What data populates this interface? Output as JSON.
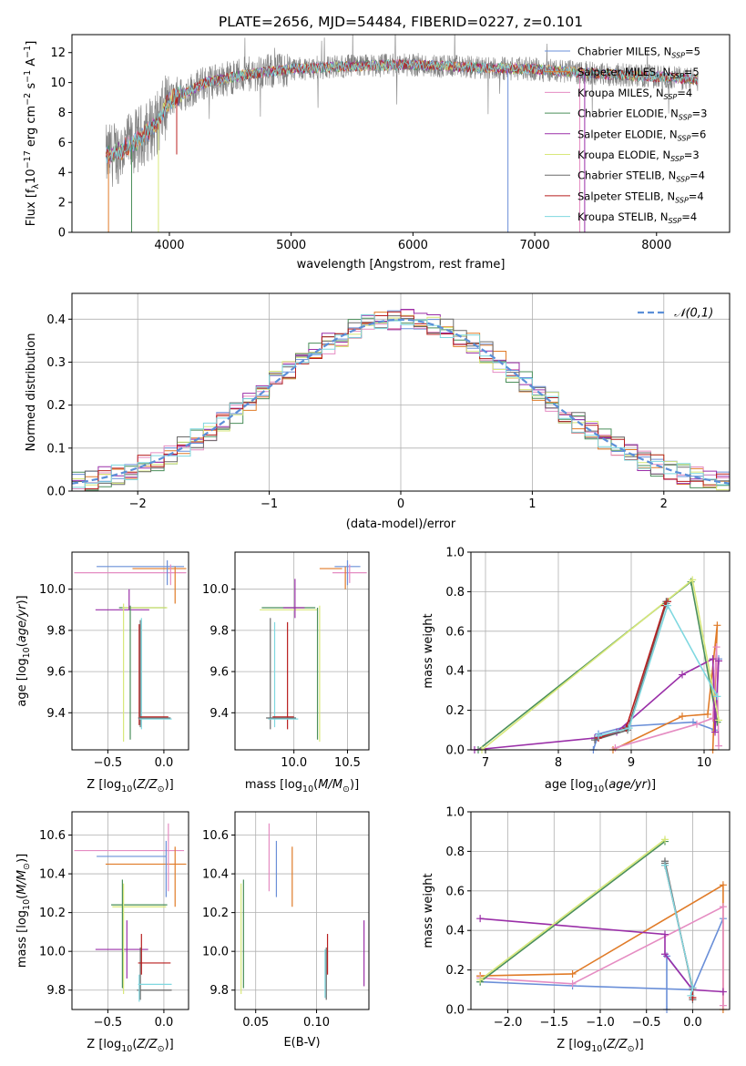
{
  "figure": {
    "title": "PLATE=2656, MJD=54484, FIBERID=0227, z=0.101"
  },
  "series_names": [
    "Chabrier MILES, N_SSP=5",
    "Salpeter MILES, N_SSP=5",
    "Kroupa MILES, N_SSP=4",
    "Chabrier ELODIE, N_SSP=3",
    "Salpeter ELODIE, N_SSP=6",
    "Kroupa ELODIE, N_SSP=3",
    "Chabrier STELIB, N_SSP=4",
    "Salpeter STELIB, N_SSP=4",
    "Kroupa STELIB, N_SSP=4"
  ],
  "legend_labels": [
    {
      "pre": "Chabrier MILES, N",
      "sub": "SSP",
      "post": "=5"
    },
    {
      "pre": "Salpeter MILES, N",
      "sub": "SSP",
      "post": "=5"
    },
    {
      "pre": "Kroupa MILES, N",
      "sub": "SSP",
      "post": "=4"
    },
    {
      "pre": "Chabrier ELODIE, N",
      "sub": "SSP",
      "post": "=3"
    },
    {
      "pre": "Salpeter ELODIE, N",
      "sub": "SSP",
      "post": "=6"
    },
    {
      "pre": "Kroupa ELODIE, N",
      "sub": "SSP",
      "post": "=3"
    },
    {
      "pre": "Chabrier STELIB, N",
      "sub": "SSP",
      "post": "=4"
    },
    {
      "pre": "Salpeter STELIB, N",
      "sub": "SSP",
      "post": "=4"
    },
    {
      "pre": "Kroupa STELIB, N",
      "sub": "SSP",
      "post": "=4"
    }
  ],
  "colors": [
    "#6a8fd8",
    "#e07b28",
    "#e58cc2",
    "#4a8f5a",
    "#9a2fa8",
    "#d8e87a",
    "#6a6a6a",
    "#b81e1e",
    "#7fd8e0"
  ],
  "chart_data": [
    {
      "id": "spectrum",
      "type": "line",
      "title": "PLATE=2656, MJD=54484, FIBERID=0227, z=0.101",
      "xlabel": "wavelength [Angstrom, rest frame]",
      "ylabel": "Flux [f_λ10^-17 erg cm^-2 s^-1 A^-1]",
      "xlim": [
        3200,
        8600
      ],
      "ylim": [
        0,
        13.2
      ],
      "xticks": [
        4000,
        5000,
        6000,
        7000,
        8000
      ],
      "yticks": [
        0,
        2,
        4,
        6,
        8,
        10,
        12
      ],
      "grid": false,
      "legend_position": "top-right",
      "data_x_range": [
        3480,
        8340
      ],
      "continuum_anchors_x": [
        3480,
        3700,
        3900,
        4000,
        4300,
        4600,
        5000,
        5500,
        6000,
        6500,
        7000,
        7500,
        8000,
        8340
      ],
      "continuum_anchors_y": [
        5.0,
        5.9,
        7.3,
        8.8,
        10.0,
        10.5,
        10.9,
        11.1,
        11.2,
        11.0,
        10.9,
        10.6,
        10.4,
        10.2
      ],
      "observed_color": "#808080",
      "model_glitches": [
        [
          3500,
          0
        ],
        [
          3690,
          0
        ],
        [
          3910,
          0
        ],
        [
          4060,
          5.2
        ],
        [
          6780,
          0
        ],
        [
          7370,
          0
        ],
        [
          7410,
          0
        ]
      ]
    },
    {
      "id": "residuals",
      "type": "bar",
      "subtype": "step-histogram",
      "xlabel": "(data-model)/error",
      "ylabel": "Normed distribution",
      "xlim": [
        -2.5,
        2.5
      ],
      "ylim": [
        0,
        0.46
      ],
      "xticks": [
        -2,
        -1,
        0,
        1,
        2
      ],
      "yticks": [
        0.0,
        0.1,
        0.2,
        0.3,
        0.4
      ],
      "grid": true,
      "bin_width": 0.1,
      "reference_curve": {
        "name": "𝒩(0,1)",
        "mean": 0,
        "sigma": 1,
        "color": "#5b8fd8",
        "dash": true
      },
      "legend_position": "top-right"
    },
    {
      "id": "age_vs_Z",
      "type": "scatter",
      "subtype": "error-crosses",
      "xlabel": "Z [log10(Z/Z☉)]",
      "ylabel": "age [log10(age/yr)]",
      "xlim": [
        -0.82,
        0.22
      ],
      "ylim": [
        9.22,
        10.18
      ],
      "xticks": [
        -0.5,
        0.0
      ],
      "yticks": [
        9.4,
        9.6,
        9.8,
        10.0
      ],
      "grid": true,
      "segments": [
        {
          "s": 0,
          "h": [
            -0.6,
            0.18
          ],
          "y": 10.11
        },
        {
          "s": 2,
          "h": [
            -0.8,
            0.2
          ],
          "y": 10.08
        },
        {
          "s": 1,
          "h": [
            -0.28,
            0.2
          ],
          "y": 10.1
        },
        {
          "s": 0,
          "v": [
            10.02,
            10.14
          ],
          "x": 0.03
        },
        {
          "s": 1,
          "v": [
            9.93,
            10.11
          ],
          "x": 0.1
        },
        {
          "s": 2,
          "v": [
            10.02,
            10.12
          ],
          "x": 0.06
        },
        {
          "s": 3,
          "h": [
            -0.4,
            0.02
          ],
          "y": 9.91
        },
        {
          "s": 5,
          "h": [
            -0.37,
            0.03
          ],
          "y": 9.91
        },
        {
          "s": 4,
          "h": [
            -0.61,
            -0.13
          ],
          "y": 9.9
        },
        {
          "s": 3,
          "v": [
            9.27,
            9.92
          ],
          "x": -0.3
        },
        {
          "s": 5,
          "v": [
            9.26,
            9.93
          ],
          "x": -0.36
        },
        {
          "s": 4,
          "v": [
            9.9,
            10.0
          ],
          "x": -0.31
        },
        {
          "s": 6,
          "v": [
            9.33,
            9.85
          ],
          "x": -0.21
        },
        {
          "s": 8,
          "v": [
            9.32,
            9.86
          ],
          "x": -0.2
        },
        {
          "s": 7,
          "v": [
            9.34,
            9.83
          ],
          "x": -0.22
        },
        {
          "s": 6,
          "h": [
            -0.23,
            0.06
          ],
          "y": 9.375
        },
        {
          "s": 8,
          "h": [
            -0.22,
            0.07
          ],
          "y": 9.37
        },
        {
          "s": 7,
          "h": [
            -0.21,
            0.04
          ],
          "y": 9.38
        }
      ]
    },
    {
      "id": "age_vs_mass",
      "type": "scatter",
      "subtype": "error-crosses",
      "xlabel": "mass [log10(M/M☉)]",
      "ylabel": "",
      "xlim": [
        9.45,
        10.7
      ],
      "ylim": [
        9.22,
        10.18
      ],
      "xticks": [
        10.0,
        10.5
      ],
      "yticks": [
        9.4,
        9.6,
        9.8,
        10.0
      ],
      "grid": true,
      "segments": [
        {
          "s": 0,
          "h": [
            10.38,
            10.62
          ],
          "y": 10.11
        },
        {
          "s": 2,
          "h": [
            10.36,
            10.68
          ],
          "y": 10.08
        },
        {
          "s": 1,
          "h": [
            10.24,
            10.45
          ],
          "y": 10.1
        },
        {
          "s": 0,
          "v": [
            10.02,
            10.14
          ],
          "x": 10.5
        },
        {
          "s": 1,
          "v": [
            10.0,
            10.11
          ],
          "x": 10.48
        },
        {
          "s": 2,
          "v": [
            10.03,
            10.12
          ],
          "x": 10.52
        },
        {
          "s": 3,
          "h": [
            9.7,
            10.2
          ],
          "y": 9.91
        },
        {
          "s": 5,
          "h": [
            9.68,
            10.22
          ],
          "y": 9.9
        },
        {
          "s": 4,
          "h": [
            9.9,
            10.1
          ],
          "y": 9.91
        },
        {
          "s": 3,
          "v": [
            9.27,
            9.91
          ],
          "x": 10.22
        },
        {
          "s": 5,
          "v": [
            9.26,
            9.92
          ],
          "x": 10.24
        },
        {
          "s": 4,
          "v": [
            9.86,
            10.05
          ],
          "x": 10.01
        },
        {
          "s": 6,
          "v": [
            9.32,
            9.86
          ],
          "x": 9.78
        },
        {
          "s": 8,
          "v": [
            9.33,
            9.84
          ],
          "x": 9.82
        },
        {
          "s": 7,
          "v": [
            9.32,
            9.84
          ],
          "x": 9.94
        },
        {
          "s": 6,
          "h": [
            9.74,
            10.02
          ],
          "y": 9.375
        },
        {
          "s": 8,
          "h": [
            9.76,
            10.04
          ],
          "y": 9.37
        },
        {
          "s": 7,
          "h": [
            9.8,
            10.0
          ],
          "y": 9.38
        }
      ]
    },
    {
      "id": "weight_vs_age",
      "type": "line",
      "xlabel": "age [log10(age/yr)]",
      "ylabel": "mass weight",
      "xlim": [
        6.8,
        10.35
      ],
      "ylim": [
        0,
        1
      ],
      "xticks": [
        7,
        8,
        9,
        10
      ],
      "yticks": [
        0.0,
        0.2,
        0.4,
        0.6,
        0.8,
        1.0
      ],
      "grid": true,
      "series": [
        {
          "s": 0,
          "x": [
            8.48,
            8.55,
            8.95,
            9.85,
            10.15,
            10.2
          ],
          "y": [
            0.0,
            0.08,
            0.12,
            0.14,
            0.1,
            0.46
          ]
        },
        {
          "s": 1,
          "x": [
            8.75,
            9.7,
            10.05,
            10.18,
            10.12
          ],
          "y": [
            0.0,
            0.17,
            0.18,
            0.63,
            0.0
          ]
        },
        {
          "s": 2,
          "x": [
            8.78,
            9.9,
            10.12,
            10.17,
            10.2
          ],
          "y": [
            0.01,
            0.13,
            0.16,
            0.52,
            0.02
          ]
        },
        {
          "s": 3,
          "x": [
            6.9,
            9.82,
            10.18
          ],
          "y": [
            0.0,
            0.85,
            0.14
          ]
        },
        {
          "s": 4,
          "x": [
            6.85,
            8.5,
            8.8,
            9.7,
            10.12,
            10.15,
            10.2
          ],
          "y": [
            0.0,
            0.06,
            0.09,
            0.38,
            0.46,
            0.09,
            0.45
          ]
        },
        {
          "s": 5,
          "x": [
            6.95,
            9.84,
            10.2
          ],
          "y": [
            0.0,
            0.86,
            0.15
          ]
        },
        {
          "s": 6,
          "x": [
            8.5,
            8.95,
            9.48,
            9.48
          ],
          "y": [
            0.05,
            0.1,
            0.74,
            0.75
          ]
        },
        {
          "s": 7,
          "x": [
            8.55,
            8.93,
            9.46,
            9.5
          ],
          "y": [
            0.06,
            0.11,
            0.73,
            0.75
          ]
        },
        {
          "s": 8,
          "x": [
            8.55,
            8.97,
            9.5,
            10.18
          ],
          "y": [
            0.07,
            0.11,
            0.73,
            0.27
          ]
        }
      ]
    },
    {
      "id": "mass_vs_Z",
      "type": "scatter",
      "subtype": "error-crosses",
      "xlabel": "Z [log10(Z/Z☉)]",
      "ylabel": "mass [log10(M/M☉)]",
      "xlim": [
        -0.82,
        0.22
      ],
      "ylim": [
        9.7,
        10.72
      ],
      "xticks": [
        -0.5,
        0.0
      ],
      "yticks": [
        9.8,
        10.0,
        10.2,
        10.4,
        10.6
      ],
      "grid": true,
      "segments": [
        {
          "s": 0,
          "h": [
            -0.6,
            0.02
          ],
          "y": 10.49
        },
        {
          "s": 2,
          "h": [
            -0.8,
            0.18
          ],
          "y": 10.52
        },
        {
          "s": 1,
          "h": [
            -0.52,
            0.2
          ],
          "y": 10.45
        },
        {
          "s": 0,
          "v": [
            10.28,
            10.57
          ],
          "x": 0.02
        },
        {
          "s": 2,
          "v": [
            10.31,
            10.66
          ],
          "x": 0.04
        },
        {
          "s": 1,
          "v": [
            10.23,
            10.54
          ],
          "x": 0.1
        },
        {
          "s": 3,
          "h": [
            -0.47,
            0.03
          ],
          "y": 10.24
        },
        {
          "s": 5,
          "h": [
            -0.46,
            0.02
          ],
          "y": 10.23
        },
        {
          "s": 4,
          "h": [
            -0.61,
            -0.14
          ],
          "y": 10.01
        },
        {
          "s": 3,
          "v": [
            9.81,
            10.37
          ],
          "x": -0.37
        },
        {
          "s": 5,
          "v": [
            9.78,
            10.35
          ],
          "x": -0.36
        },
        {
          "s": 4,
          "v": [
            9.86,
            10.16
          ],
          "x": -0.33
        },
        {
          "s": 6,
          "v": [
            9.75,
            10.02
          ],
          "x": -0.21
        },
        {
          "s": 7,
          "v": [
            9.88,
            10.09
          ],
          "x": -0.2
        },
        {
          "s": 7,
          "h": [
            -0.23,
            0.06
          ],
          "y": 9.94
        },
        {
          "s": 6,
          "h": [
            -0.24,
            0.07
          ],
          "y": 9.8
        },
        {
          "s": 8,
          "h": [
            -0.23,
            0.07
          ],
          "y": 9.83
        },
        {
          "s": 8,
          "v": [
            9.74,
            9.88
          ],
          "x": -0.22
        }
      ]
    },
    {
      "id": "mass_vs_EBV",
      "type": "scatter",
      "subtype": "error-bars",
      "xlabel": "E(B-V)",
      "ylabel": "",
      "xlim": [
        0.033,
        0.143
      ],
      "ylim": [
        9.7,
        10.72
      ],
      "xticks": [
        0.05,
        0.1
      ],
      "yticks": [
        9.8,
        10.0,
        10.2,
        10.4,
        10.6
      ],
      "grid": true,
      "segments": [
        {
          "s": 0,
          "v": [
            10.28,
            10.57
          ],
          "x": 0.067
        },
        {
          "s": 2,
          "v": [
            10.31,
            10.66
          ],
          "x": 0.061
        },
        {
          "s": 1,
          "v": [
            10.23,
            10.54
          ],
          "x": 0.08
        },
        {
          "s": 3,
          "v": [
            9.81,
            10.37
          ],
          "x": 0.04
        },
        {
          "s": 5,
          "v": [
            9.78,
            10.35
          ],
          "x": 0.038
        },
        {
          "s": 4,
          "v": [
            9.82,
            10.16
          ],
          "x": 0.139
        },
        {
          "s": 6,
          "v": [
            9.75,
            10.02
          ],
          "x": 0.108
        },
        {
          "s": 7,
          "v": [
            9.88,
            10.09
          ],
          "x": 0.109
        },
        {
          "s": 8,
          "v": [
            9.76,
            10.01
          ],
          "x": 0.107
        }
      ]
    },
    {
      "id": "weight_vs_Z",
      "type": "line",
      "xlabel": "Z [log10(Z/Z☉)]",
      "ylabel": "mass weight",
      "xlim": [
        -2.4,
        0.4
      ],
      "ylim": [
        0,
        1
      ],
      "xticks": [
        -2.0,
        -1.5,
        -1.0,
        -0.5,
        0.0
      ],
      "yticks": [
        0.0,
        0.2,
        0.4,
        0.6,
        0.8,
        1.0
      ],
      "grid": true,
      "series": [
        {
          "s": 0,
          "x": [
            -0.28,
            -0.28,
            0.0,
            0.33,
            0.0,
            -1.3,
            -2.3
          ],
          "y": [
            0.0,
            0.27,
            0.1,
            0.46,
            0.1,
            0.12,
            0.14
          ]
        },
        {
          "s": 1,
          "x": [
            0.33,
            0.33,
            -1.3,
            -2.3,
            -2.3
          ],
          "y": [
            0.0,
            0.63,
            0.18,
            0.17,
            0.17
          ]
        },
        {
          "s": 2,
          "x": [
            0.33,
            0.33,
            -1.3,
            -2.3
          ],
          "y": [
            0.02,
            0.52,
            0.13,
            0.16
          ]
        },
        {
          "s": 3,
          "x": [
            -2.3,
            -0.3
          ],
          "y": [
            0.14,
            0.85
          ]
        },
        {
          "s": 4,
          "x": [
            -2.3,
            -0.3,
            -0.3,
            0.0,
            0.33
          ],
          "y": [
            0.46,
            0.38,
            0.28,
            0.1,
            0.09
          ]
        },
        {
          "s": 5,
          "x": [
            -2.3,
            -0.3
          ],
          "y": [
            0.15,
            0.86
          ]
        },
        {
          "s": 6,
          "x": [
            -0.3,
            -0.3,
            0.0,
            0.0
          ],
          "y": [
            0.74,
            0.75,
            0.1,
            0.05
          ]
        },
        {
          "s": 7,
          "x": [
            -0.3,
            0.0,
            0.0
          ],
          "y": [
            0.73,
            0.11,
            0.06
          ]
        },
        {
          "s": 8,
          "x": [
            -0.3,
            0.0,
            -0.02
          ],
          "y": [
            0.73,
            0.11,
            0.07
          ]
        }
      ]
    }
  ]
}
